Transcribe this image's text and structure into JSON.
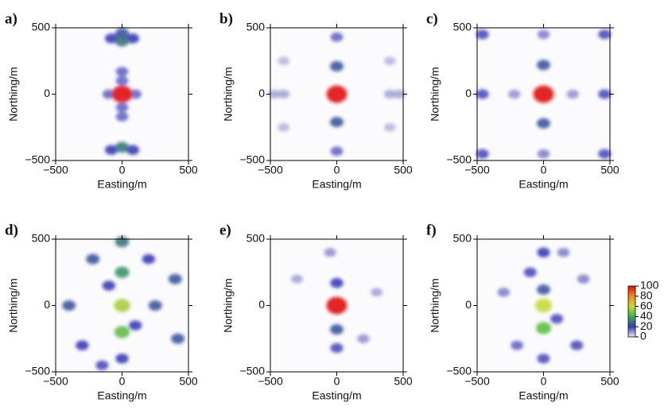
{
  "chart_data": [
    {
      "type": "heatmap",
      "panel_label": "a)",
      "xlabel": "Easting/m",
      "ylabel": "Northing/m",
      "xlim": [
        -500,
        500
      ],
      "ylim": [
        -500,
        500
      ],
      "xticks": [
        {
          "value": -500,
          "label": "−500"
        },
        0,
        500
      ],
      "yticks": [
        {
          "value": -500,
          "label": "−500"
        },
        0,
        500
      ],
      "x": [
        0,
        0,
        100,
        -100,
        0,
        0,
        -80,
        80,
        -80,
        80,
        0,
        0,
        0,
        0
      ],
      "y": [
        100,
        -100,
        0,
        0,
        170,
        -170,
        420,
        420,
        -420,
        -420,
        400,
        -400,
        460,
        0
      ],
      "values": [
        15,
        15,
        15,
        15,
        15,
        15,
        20,
        20,
        20,
        20,
        30,
        30,
        25,
        100
      ]
    },
    {
      "type": "heatmap",
      "panel_label": "b)",
      "xlabel": "Easting/m",
      "ylabel": "Northing/m",
      "xlim": [
        -500,
        500
      ],
      "ylim": [
        -500,
        500
      ],
      "xticks": [
        {
          "value": -500,
          "label": "−500"
        },
        0,
        500
      ],
      "yticks": [
        {
          "value": -500,
          "label": "−500"
        },
        0,
        500
      ],
      "x": [
        -400,
        400,
        -470,
        470,
        -400,
        400,
        -400,
        400,
        0,
        0,
        0,
        0,
        0
      ],
      "y": [
        0,
        0,
        0,
        0,
        250,
        250,
        -250,
        -250,
        430,
        -430,
        210,
        -210,
        0
      ],
      "values": [
        8,
        8,
        8,
        8,
        6,
        6,
        6,
        6,
        15,
        15,
        25,
        25,
        100
      ]
    },
    {
      "type": "heatmap",
      "panel_label": "c)",
      "xlabel": "Easting/m",
      "ylabel": "Northing/m",
      "xlim": [
        -500,
        500
      ],
      "ylim": [
        -500,
        500
      ],
      "xticks": [
        {
          "value": -500,
          "label": "−500"
        },
        0,
        500
      ],
      "yticks": [
        {
          "value": -500,
          "label": "−500"
        },
        0,
        500
      ],
      "x": [
        -220,
        220,
        0,
        0,
        -460,
        460,
        -460,
        460,
        -460,
        460,
        0,
        0,
        0
      ],
      "y": [
        0,
        0,
        450,
        -450,
        0,
        0,
        450,
        450,
        -450,
        -450,
        220,
        -220,
        0
      ],
      "values": [
        10,
        10,
        12,
        12,
        18,
        18,
        18,
        18,
        18,
        18,
        25,
        25,
        100
      ]
    },
    {
      "type": "heatmap",
      "panel_label": "d)",
      "xlabel": "Easting/m",
      "ylabel": "Northing/m",
      "xlim": [
        -500,
        500
      ],
      "ylim": [
        -500,
        500
      ],
      "xticks": [
        {
          "value": -500,
          "label": "−500"
        },
        0,
        500
      ],
      "yticks": [
        {
          "value": -500,
          "label": "−500"
        },
        0,
        500
      ],
      "x": [
        -150,
        -100,
        100,
        0,
        -300,
        200,
        -220,
        -400,
        250,
        400,
        420,
        0,
        0,
        0,
        0
      ],
      "y": [
        -450,
        150,
        -150,
        -400,
        -300,
        350,
        350,
        0,
        0,
        200,
        -250,
        480,
        250,
        -200,
        0
      ],
      "values": [
        18,
        20,
        20,
        20,
        20,
        20,
        25,
        25,
        25,
        25,
        25,
        30,
        35,
        45,
        55
      ]
    },
    {
      "type": "heatmap",
      "panel_label": "e)",
      "xlabel": "Easting/m",
      "ylabel": "Northing/m",
      "xlim": [
        -500,
        500
      ],
      "ylim": [
        -500,
        500
      ],
      "xticks": [
        {
          "value": -500,
          "label": "−500"
        },
        0,
        500
      ],
      "yticks": [
        {
          "value": -500,
          "label": "−500"
        },
        0,
        500
      ],
      "x": [
        -300,
        300,
        -50,
        200,
        0,
        0,
        0,
        0
      ],
      "y": [
        200,
        100,
        400,
        -250,
        -320,
        170,
        -180,
        0
      ],
      "values": [
        8,
        8,
        10,
        10,
        18,
        20,
        25,
        100
      ]
    },
    {
      "type": "heatmap",
      "panel_label": "f)",
      "xlabel": "Easting/m",
      "ylabel": "Northing/m",
      "xlim": [
        -500,
        500
      ],
      "ylim": [
        -500,
        500
      ],
      "xticks": [
        {
          "value": -500,
          "label": "−500"
        },
        0,
        500
      ],
      "yticks": [
        {
          "value": -500,
          "label": "−500"
        },
        0,
        500
      ],
      "x": [
        -300,
        300,
        150,
        -200,
        -100,
        100,
        250,
        0,
        0,
        0,
        0,
        0
      ],
      "y": [
        100,
        200,
        400,
        -300,
        250,
        -100,
        -300,
        400,
        -400,
        120,
        -170,
        0
      ],
      "values": [
        12,
        12,
        12,
        15,
        18,
        18,
        18,
        20,
        18,
        25,
        45,
        60
      ]
    },
    {
      "type": "colorbar",
      "lim": [
        0,
        100
      ],
      "ticks": [
        0,
        20,
        40,
        60,
        80,
        100
      ],
      "colors": [
        "#ececec",
        "#3a3ab8",
        "#3cb24a",
        "#c8d83a",
        "#f08a20",
        "#e01010"
      ]
    }
  ]
}
